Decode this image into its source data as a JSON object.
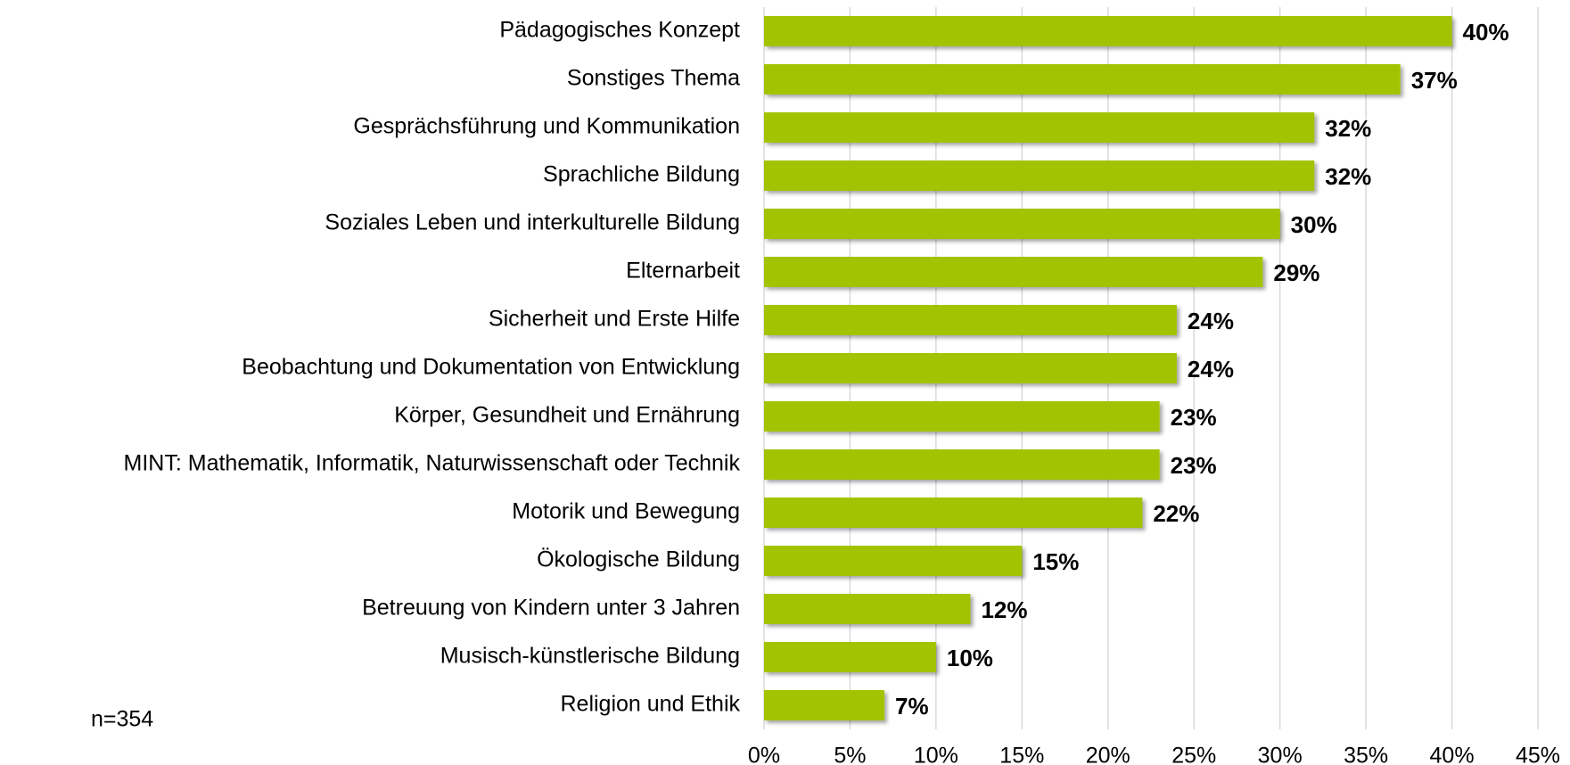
{
  "chart_data": {
    "type": "barh",
    "categories": [
      "Pädagogisches Konzept",
      "Sonstiges Thema",
      "Gesprächsführung und Kommunikation",
      "Sprachliche Bildung",
      "Soziales Leben und interkulturelle Bildung",
      "Elternarbeit",
      "Sicherheit und Erste Hilfe",
      "Beobachtung und Dokumentation von Entwicklung",
      "Körper, Gesundheit und Ernährung",
      "MINT: Mathematik, Informatik, Naturwissenschaft oder Technik",
      "Motorik und Bewegung",
      "Ökologische Bildung",
      "Betreuung von Kindern unter 3 Jahren",
      "Musisch-künstlerische Bildung",
      "Religion und Ethik"
    ],
    "values": [
      40,
      37,
      32,
      32,
      30,
      29,
      24,
      24,
      23,
      23,
      22,
      15,
      12,
      10,
      7
    ],
    "value_labels": [
      "40%",
      "37%",
      "32%",
      "32%",
      "30%",
      "29%",
      "24%",
      "24%",
      "23%",
      "23%",
      "22%",
      "15%",
      "12%",
      "10%",
      "7%"
    ],
    "color": "#a2c400",
    "xlim": [
      0,
      45
    ],
    "xticks": [
      {
        "value": 0,
        "label": "0%"
      },
      {
        "value": 5,
        "label": "5%"
      },
      {
        "value": 10,
        "label": "10%"
      },
      {
        "value": 15,
        "label": "15%"
      },
      {
        "value": 20,
        "label": "20%"
      },
      {
        "value": 25,
        "label": "25%"
      },
      {
        "value": 30,
        "label": "30%"
      },
      {
        "value": 35,
        "label": "35%"
      },
      {
        "value": 40,
        "label": "40%"
      },
      {
        "value": 45,
        "label": "45%"
      }
    ],
    "grid": true,
    "annotation": "n=354"
  }
}
